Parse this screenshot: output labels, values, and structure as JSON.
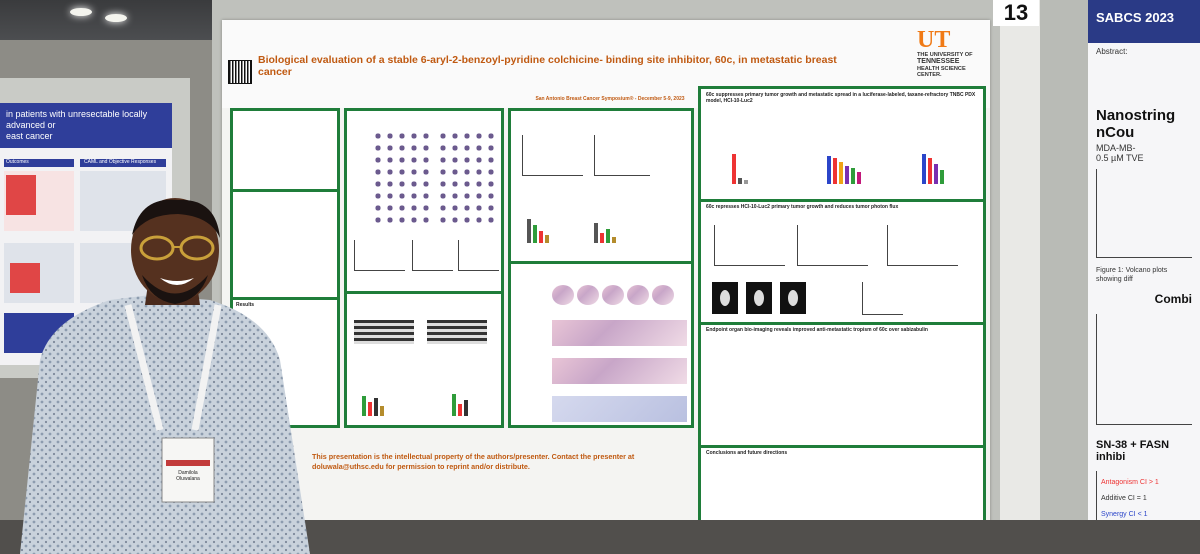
{
  "booth": {
    "number": "13"
  },
  "poster": {
    "title": "Biological evaluation of a stable 6-aryl-2-benzoyl-pyridine colchicine- binding site inhibitor, 60c, in metastatic breast cancer",
    "meeting": "San Antonio Breast Cancer Symposium® - December 5-9, 2023",
    "university_line1": "THE UNIVERSITY OF",
    "university_line2": "TENNESSEE",
    "university_line3": "HEALTH SCIENCE CENTER.",
    "footer_line1": "This presentation is the intellectual property of the authors/presenter. Contact the presenter at",
    "footer_line2": "doluwala@uthsc.edu for permission to reprint and/or distribute.",
    "sections": {
      "results": "Results",
      "conclusions": "Conclusions and future directions",
      "metastasis": "60c suppresses primary tumor growth and metastatic spread in a luciferase-labeled, taxane-refractory TNBC PDX model, HCI-10-Luc2",
      "photon_flux": "60c represses HCI-10-Luc2 primary tumor growth and reduces tumor photon flux",
      "bioimaging": "Endpoint organ bio-imaging reveals improved anti-metastatic tropism of 60c over sabizabulin"
    }
  },
  "right_poster": {
    "header": "SABCS 2023",
    "abstract_label": "Abstract:",
    "plot_title": "Nanostring nCou",
    "plot_subtitle": "MDA-MB-",
    "plot_subtitle2": "0.5 µM TVE",
    "figure1": "Figure 1: Volcano plots showing diff",
    "combi": "Combi",
    "section": "SN-38 + FASN inhibi",
    "legend1": "Antagonism CI > 1",
    "legend2": "Additive CI = 1",
    "legend3": "Synergy CI < 1"
  },
  "left_poster": {
    "title_fragment": "in patients with unresectable locally advanced or",
    "title_fragment2": "east cancer",
    "label1": "Outcomes",
    "label2": "CAML and Objective Responses"
  },
  "badge": {
    "text": "Damilola Oluwalana"
  },
  "colors": {
    "poster_accent": "#c05a12",
    "panel_border": "#1f7d3a",
    "right_header": "#2a3a86"
  }
}
